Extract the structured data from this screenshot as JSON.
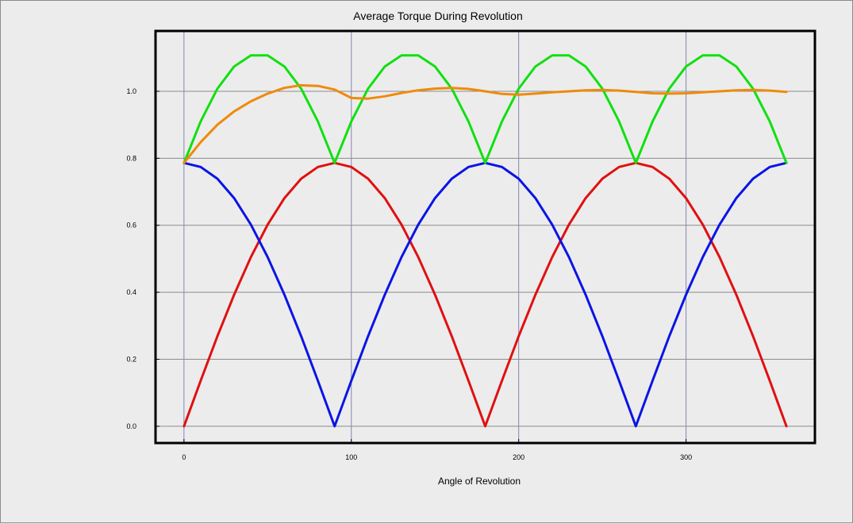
{
  "chart_data": {
    "type": "line",
    "title": "Average Torque During Revolution",
    "xlabel": "Angle of Revolution",
    "ylabel": "",
    "xlim": [
      -17,
      377
    ],
    "ylim": [
      -0.05,
      1.18
    ],
    "xticks": [
      0,
      100,
      200,
      300
    ],
    "xtick_labels": [
      "0",
      "100",
      "200",
      "300"
    ],
    "yticks": [
      0.0,
      0.2,
      0.4,
      0.6,
      0.8,
      1.0
    ],
    "ytick_labels": [
      "0.0",
      "0.2",
      "0.4",
      "0.6",
      "0.8",
      "1.0"
    ],
    "grid": true,
    "legend": "none",
    "x": [
      0,
      10,
      20,
      30,
      40,
      50,
      60,
      70,
      80,
      90,
      100,
      110,
      120,
      130,
      140,
      150,
      160,
      170,
      180,
      190,
      200,
      210,
      220,
      230,
      240,
      250,
      260,
      270,
      280,
      290,
      300,
      310,
      320,
      330,
      340,
      350,
      360
    ],
    "series": [
      {
        "color": "#e01010",
        "values": [
          0.0,
          0.136,
          0.269,
          0.393,
          0.505,
          0.602,
          0.681,
          0.739,
          0.774,
          0.786,
          0.774,
          0.739,
          0.681,
          0.602,
          0.505,
          0.393,
          0.269,
          0.136,
          0.0,
          0.136,
          0.269,
          0.393,
          0.505,
          0.602,
          0.681,
          0.739,
          0.774,
          0.786,
          0.774,
          0.739,
          0.681,
          0.602,
          0.505,
          0.393,
          0.269,
          0.136,
          0.0
        ]
      },
      {
        "color": "#0a14e6",
        "values": [
          0.786,
          0.774,
          0.739,
          0.681,
          0.602,
          0.505,
          0.393,
          0.269,
          0.136,
          0.0,
          0.136,
          0.269,
          0.393,
          0.505,
          0.602,
          0.681,
          0.739,
          0.774,
          0.786,
          0.774,
          0.739,
          0.681,
          0.602,
          0.505,
          0.393,
          0.269,
          0.136,
          0.0,
          0.136,
          0.269,
          0.393,
          0.505,
          0.602,
          0.681,
          0.739,
          0.774,
          0.786
        ]
      },
      {
        "color": "#10e010",
        "values": [
          0.786,
          0.91,
          1.008,
          1.074,
          1.107,
          1.107,
          1.074,
          1.008,
          0.91,
          0.786,
          0.91,
          1.008,
          1.074,
          1.107,
          1.107,
          1.074,
          1.008,
          0.91,
          0.786,
          0.91,
          1.008,
          1.074,
          1.107,
          1.107,
          1.074,
          1.008,
          0.91,
          0.786,
          0.91,
          1.008,
          1.074,
          1.107,
          1.107,
          1.074,
          1.008,
          0.91,
          0.786
        ]
      },
      {
        "color": "#ef8a0c",
        "values": [
          0.786,
          0.848,
          0.9,
          0.94,
          0.97,
          0.993,
          1.01,
          1.018,
          1.016,
          1.005,
          0.98,
          0.978,
          0.985,
          0.995,
          1.003,
          1.008,
          1.01,
          1.007,
          1.0,
          0.992,
          0.99,
          0.993,
          0.997,
          1.0,
          1.003,
          1.004,
          1.002,
          0.998,
          0.994,
          0.993,
          0.994,
          0.997,
          1.0,
          1.003,
          1.004,
          1.002,
          0.998
        ]
      }
    ]
  }
}
